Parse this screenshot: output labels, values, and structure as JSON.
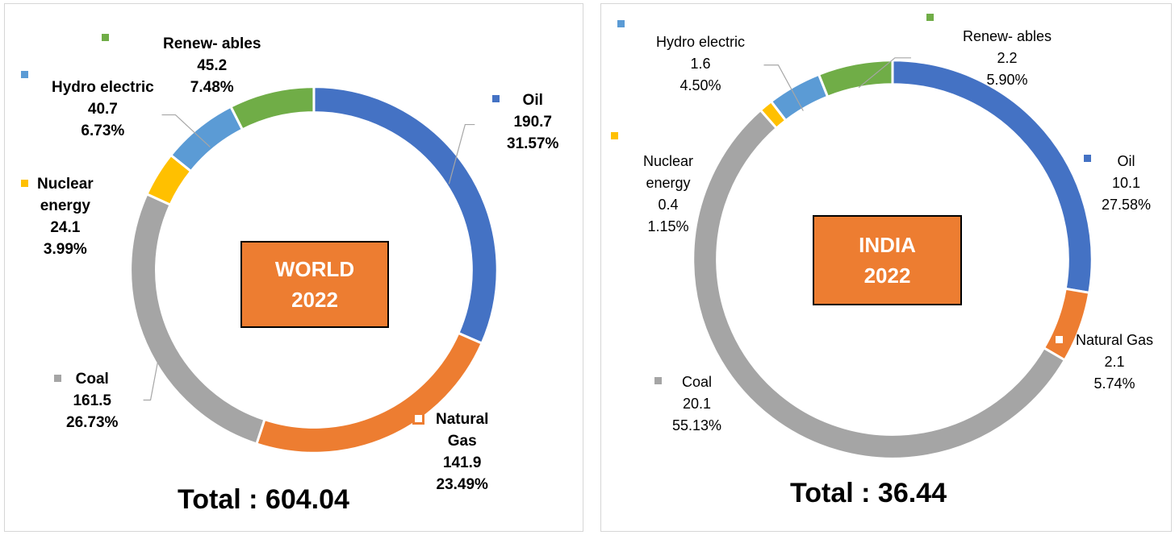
{
  "chart_data": [
    {
      "type": "pie",
      "variant": "donut",
      "title": "WORLD\n2022",
      "title_lines": [
        "WORLD",
        "2022"
      ],
      "total_text": "Total : 604.04",
      "slices": [
        {
          "name": "Oil",
          "name_lines": [
            "Oil"
          ],
          "value": 190.7,
          "value_text": "190.7",
          "percent_text": "31.57%",
          "color": "#4472C4"
        },
        {
          "name": "Natural Gas",
          "name_lines": [
            "Natural",
            "Gas"
          ],
          "value": 141.9,
          "value_text": "141.9",
          "percent_text": "23.49%",
          "color": "#ED7D31"
        },
        {
          "name": "Coal",
          "name_lines": [
            "Coal"
          ],
          "value": 161.5,
          "value_text": "161.5",
          "percent_text": "26.73%",
          "color": "#A5A5A5"
        },
        {
          "name": "Nuclear energy",
          "name_lines": [
            "Nuclear",
            "energy"
          ],
          "value": 24.1,
          "value_text": "24.1",
          "percent_text": "3.99%",
          "color": "#FFC000"
        },
        {
          "name": "Hydro electric",
          "name_lines": [
            "Hydro electric"
          ],
          "value": 40.7,
          "value_text": "40.7",
          "percent_text": "6.73%",
          "color": "#5B9BD5"
        },
        {
          "name": "Renew- ables",
          "name_lines": [
            "Renew- ables"
          ],
          "value": 45.2,
          "value_text": "45.2",
          "percent_text": "7.48%",
          "color": "#70AD47"
        }
      ]
    },
    {
      "type": "pie",
      "variant": "donut",
      "title": "INDIA\n2022",
      "title_lines": [
        "INDIA",
        "2022"
      ],
      "total_text": "Total : 36.44",
      "slices": [
        {
          "name": "Oil",
          "name_lines": [
            "Oil"
          ],
          "value": 10.1,
          "value_text": "10.1",
          "percent_text": "27.58%",
          "color": "#4472C4"
        },
        {
          "name": "Natural Gas",
          "name_lines": [
            "Natural Gas"
          ],
          "value": 2.1,
          "value_text": "2.1",
          "percent_text": "5.74%",
          "color": "#ED7D31"
        },
        {
          "name": "Coal",
          "name_lines": [
            "Coal"
          ],
          "value": 20.1,
          "value_text": "20.1",
          "percent_text": "55.13%",
          "color": "#A5A5A5"
        },
        {
          "name": "Nuclear energy",
          "name_lines": [
            "Nuclear",
            "energy"
          ],
          "value": 0.4,
          "value_text": "0.4",
          "percent_text": "1.15%",
          "color": "#FFC000"
        },
        {
          "name": "Hydro electric",
          "name_lines": [
            "Hydro electric"
          ],
          "value": 1.6,
          "value_text": "1.6",
          "percent_text": "4.50%",
          "color": "#5B9BD5"
        },
        {
          "name": "Renew- ables",
          "name_lines": [
            "Renew- ables"
          ],
          "value": 2.2,
          "value_text": "2.2",
          "percent_text": "5.90%",
          "color": "#70AD47"
        }
      ]
    }
  ]
}
